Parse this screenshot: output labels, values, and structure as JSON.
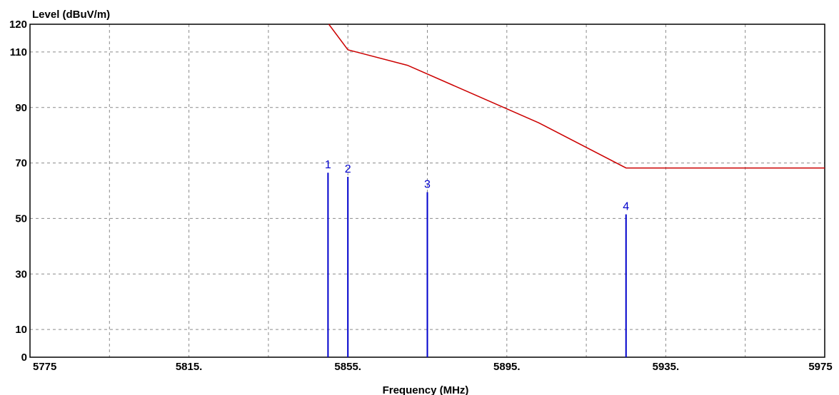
{
  "chart_data": {
    "type": "line",
    "ylabel": "Level (dBuV/m)",
    "xlabel": "Frequency (MHz)",
    "xlim": [
      5775,
      5975
    ],
    "ylim": [
      0,
      120
    ],
    "x_ticks": [
      5775,
      5815,
      5855,
      5895,
      5935,
      5975
    ],
    "x_tick_labels": [
      "5775",
      "5815.",
      "5855.",
      "5895.",
      "5935.",
      "5975"
    ],
    "y_ticks": [
      0,
      10,
      30,
      50,
      70,
      90,
      110,
      120
    ],
    "y_tick_labels": [
      "0",
      "10",
      "30",
      "50",
      "70",
      "90",
      "110",
      "120"
    ],
    "grid": true,
    "limit_line": {
      "color": "#cc0000",
      "points": [
        [
          5850.2,
          120
        ],
        [
          5855.0,
          110.8
        ],
        [
          5870.0,
          105.2
        ],
        [
          5903.0,
          84.5
        ],
        [
          5925.0,
          68.2
        ],
        [
          5975.0,
          68.2
        ]
      ]
    },
    "markers": {
      "color": "#0000cc",
      "items": [
        {
          "label": "1",
          "x": 5850.0,
          "y": 66.5
        },
        {
          "label": "2",
          "x": 5855.0,
          "y": 65.0
        },
        {
          "label": "3",
          "x": 5875.0,
          "y": 59.5
        },
        {
          "label": "4",
          "x": 5925.0,
          "y": 51.5
        }
      ]
    }
  }
}
